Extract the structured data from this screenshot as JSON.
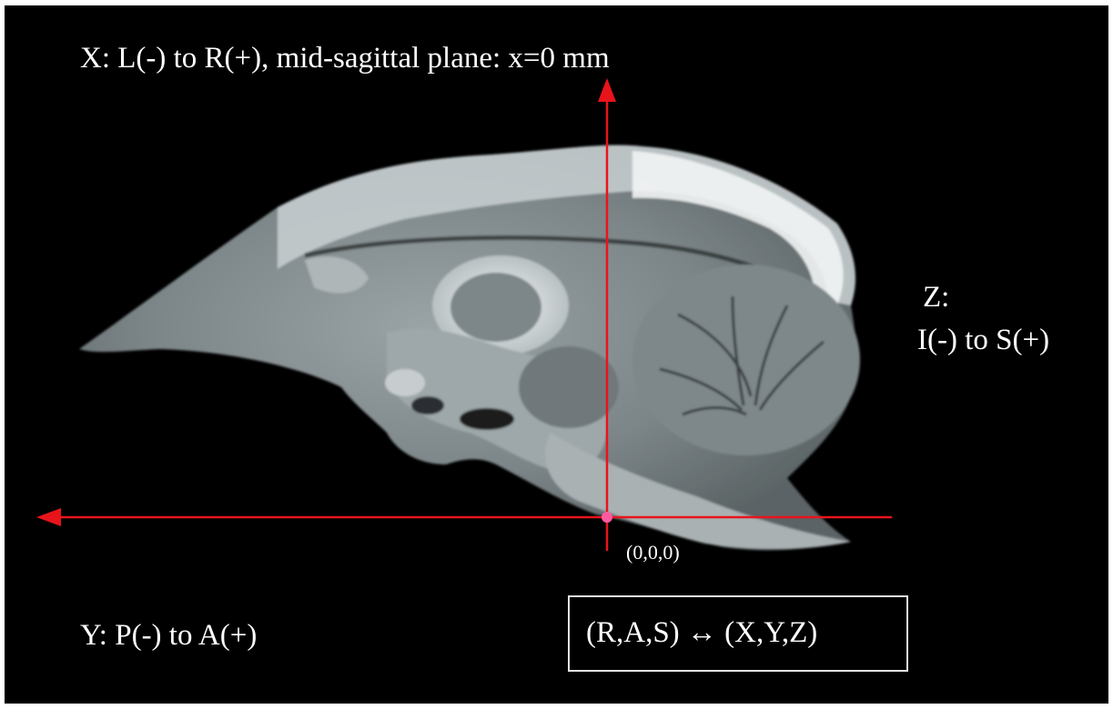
{
  "labels": {
    "x_axis": "X: L(-) to R(+), mid-sagittal plane: x=0 mm",
    "z_axis_line1": "Z:",
    "z_axis_line2": "I(-) to S(+)",
    "origin": "(0,0,0)",
    "y_axis": "Y: P(-) to A(+)",
    "mapping": "(R,A,S) ↔ (X,Y,Z)"
  },
  "colors": {
    "background": "#000000",
    "axis": "#e8141b",
    "origin_marker": "#ff5aa0",
    "text": "#ffffff"
  },
  "image": {
    "subject": "sagittal MRI slice of brain",
    "icon": "brain-mri-slice"
  }
}
